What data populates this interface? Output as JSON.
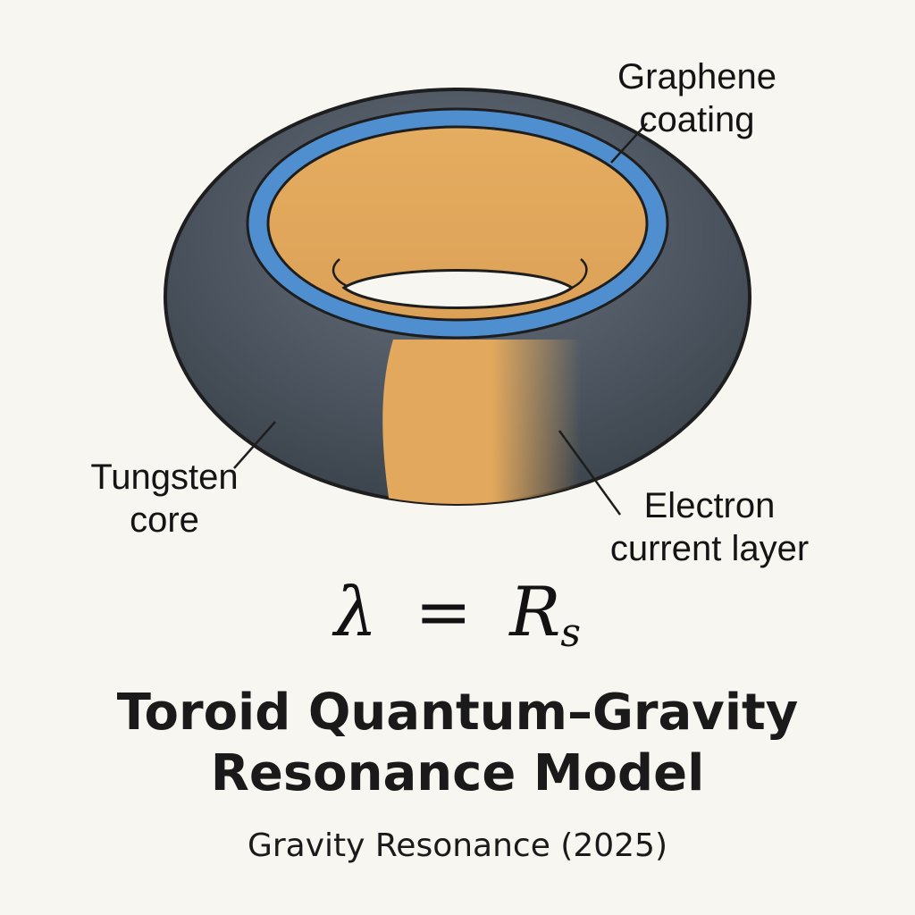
{
  "labels": {
    "graphene": [
      "Graphene",
      "coating"
    ],
    "tungsten": [
      "Tungsten",
      "core"
    ],
    "electron": [
      "Electron",
      "current layer"
    ]
  },
  "formula": {
    "lhs": "λ",
    "op": "=",
    "rhs": "R",
    "rhs_sub": "s"
  },
  "title": [
    "Toroid Quantum–Gravity",
    "Resonance Model"
  ],
  "subtitle": "Gravity Resonance (2025)",
  "colors": {
    "background": "#f8f6f1",
    "torus_outer": "#4f5863",
    "graphene": "#4f8fd0",
    "inner_gold": "#e3a95c",
    "outline": "#1e1e1e"
  }
}
